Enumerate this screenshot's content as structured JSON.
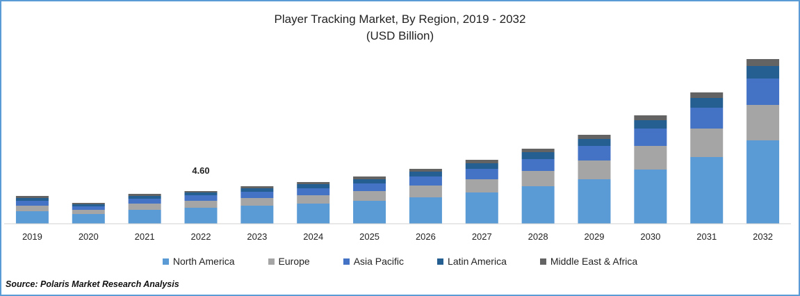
{
  "chart_data": {
    "type": "bar",
    "stacked": true,
    "title": "Player Tracking Market, By Region, 2019 - 2032",
    "subtitle": "(USD Billion)",
    "xlabel": "",
    "ylabel": "",
    "ylim": [
      0,
      24
    ],
    "grid": false,
    "legend_position": "bottom",
    "categories": [
      "2019",
      "2020",
      "2021",
      "2022",
      "2023",
      "2024",
      "2025",
      "2026",
      "2027",
      "2028",
      "2029",
      "2030",
      "2031",
      "2032"
    ],
    "series": [
      {
        "name": "North America",
        "color": "#5b9bd5",
        "values": [
          1.8,
          1.4,
          2.0,
          2.3,
          2.6,
          2.9,
          3.3,
          3.8,
          4.5,
          5.4,
          6.4,
          7.8,
          9.6,
          12.0
        ]
      },
      {
        "name": "Europe",
        "color": "#a5a5a5",
        "values": [
          0.8,
          0.6,
          0.9,
          1.0,
          1.1,
          1.2,
          1.4,
          1.7,
          1.9,
          2.2,
          2.7,
          3.4,
          4.1,
          5.1
        ]
      },
      {
        "name": "Asia Pacific",
        "color": "#4472c4",
        "values": [
          0.7,
          0.5,
          0.7,
          0.8,
          0.9,
          1.0,
          1.1,
          1.3,
          1.5,
          1.7,
          2.1,
          2.5,
          3.0,
          3.8
        ]
      },
      {
        "name": "Latin America",
        "color": "#255e91",
        "values": [
          0.4,
          0.3,
          0.4,
          0.4,
          0.5,
          0.6,
          0.6,
          0.7,
          0.8,
          1.0,
          1.0,
          1.2,
          1.4,
          1.8
        ]
      },
      {
        "name": "Middle East & Africa",
        "color": "#636363",
        "values": [
          0.3,
          0.2,
          0.3,
          0.2,
          0.3,
          0.3,
          0.4,
          0.4,
          0.5,
          0.5,
          0.6,
          0.7,
          0.8,
          1.0
        ]
      }
    ],
    "annotations": [
      {
        "category": "2022",
        "label": "4.60"
      }
    ]
  },
  "source": "Source: Polaris  Market Research Analysis"
}
